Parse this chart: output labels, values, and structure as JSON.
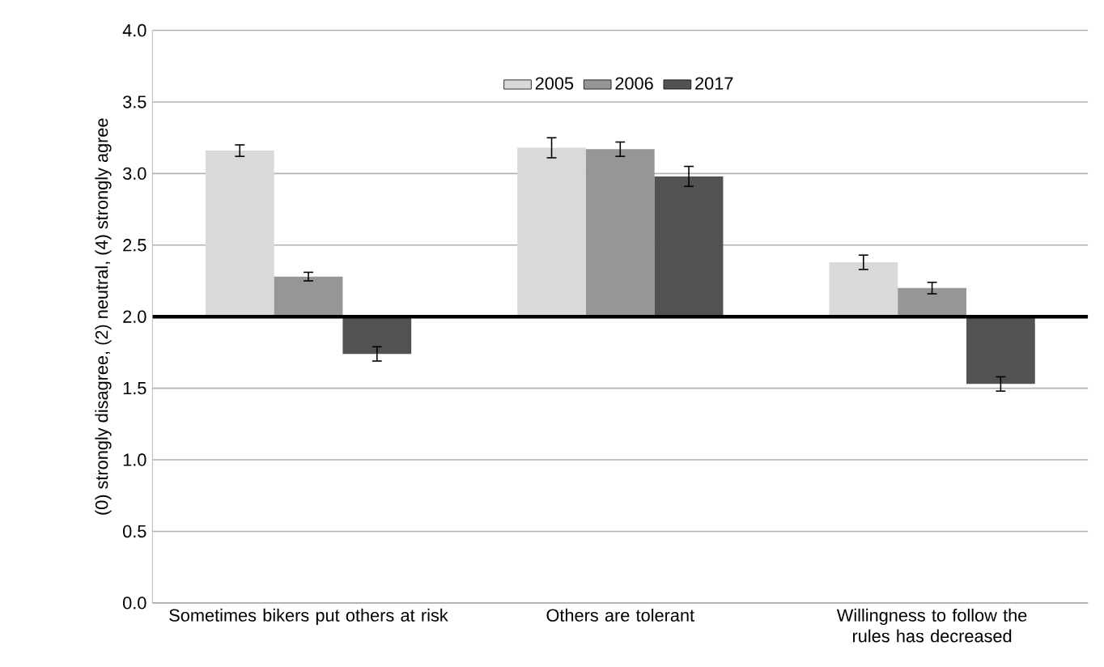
{
  "chart_data": {
    "type": "bar",
    "ylabel": "(0) strongly disagree, (2) neutral, (4) strongly agree",
    "categories": [
      "Sometimes bikers put others at risk",
      "Others are tolerant",
      "Willingness to follow the rules has decreased"
    ],
    "series": [
      {
        "name": "2005",
        "color": "#d9d9d9",
        "base": [
          2,
          2,
          2
        ],
        "values": [
          1.16,
          1.18,
          0.38
        ],
        "errors": [
          0.04,
          0.07,
          0.05
        ]
      },
      {
        "name": "2006",
        "color": "#969696",
        "base": [
          2,
          2,
          2
        ],
        "values": [
          0.28,
          1.17,
          0.2
        ],
        "errors": [
          0.03,
          0.05,
          0.04
        ]
      },
      {
        "name": "2017",
        "color": "#525252",
        "base": [
          2,
          2,
          2
        ],
        "values": [
          -0.26,
          0.98,
          -0.47
        ],
        "errors": [
          0.05,
          0.07,
          0.05
        ]
      }
    ],
    "ylim": [
      0,
      4
    ],
    "yticks": [
      {
        "value": 0,
        "label": "0.0"
      },
      {
        "value": 0.5,
        "label": "0.5"
      },
      {
        "value": 1,
        "label": "1.0"
      },
      {
        "value": 1.5,
        "label": "1.5"
      },
      {
        "value": 2,
        "label": "2.0"
      },
      {
        "value": 2.5,
        "label": "2.5"
      },
      {
        "value": 3,
        "label": "3.0"
      },
      {
        "value": 3.5,
        "label": "3.5"
      },
      {
        "value": 4,
        "label": "4.0"
      }
    ],
    "ref_lines": [
      {
        "axis": "y",
        "value": 2,
        "color": "#000000"
      }
    ],
    "grid": "y",
    "legend": "top"
  }
}
